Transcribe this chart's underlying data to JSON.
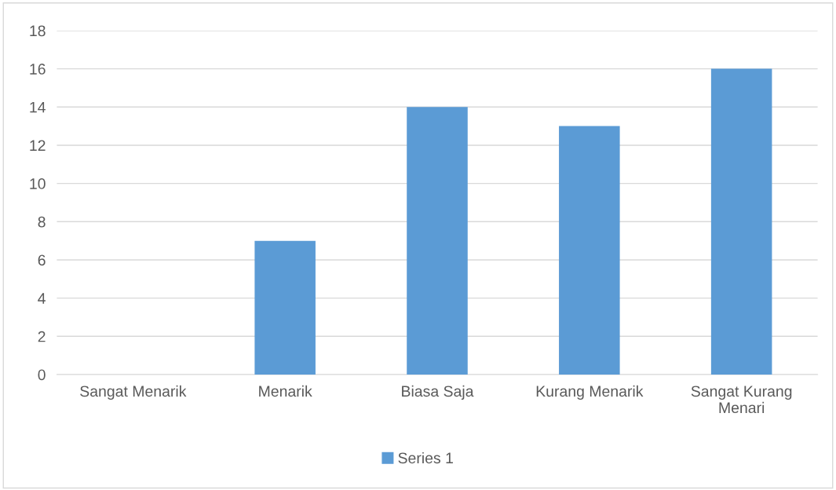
{
  "chart_data": {
    "type": "bar",
    "categories": [
      "Sangat Menarik",
      "Menarik",
      "Biasa Saja",
      "Kurang Menarik",
      "Sangat Kurang\nMenari"
    ],
    "series": [
      {
        "name": "Series 1",
        "color": "#5b9bd5",
        "values": [
          0,
          7,
          14,
          13,
          16
        ]
      }
    ],
    "ylim": [
      0,
      18
    ],
    "yticks": [
      0,
      2,
      4,
      6,
      8,
      10,
      12,
      14,
      16,
      18
    ],
    "grid": "y",
    "legend": "bottom"
  }
}
